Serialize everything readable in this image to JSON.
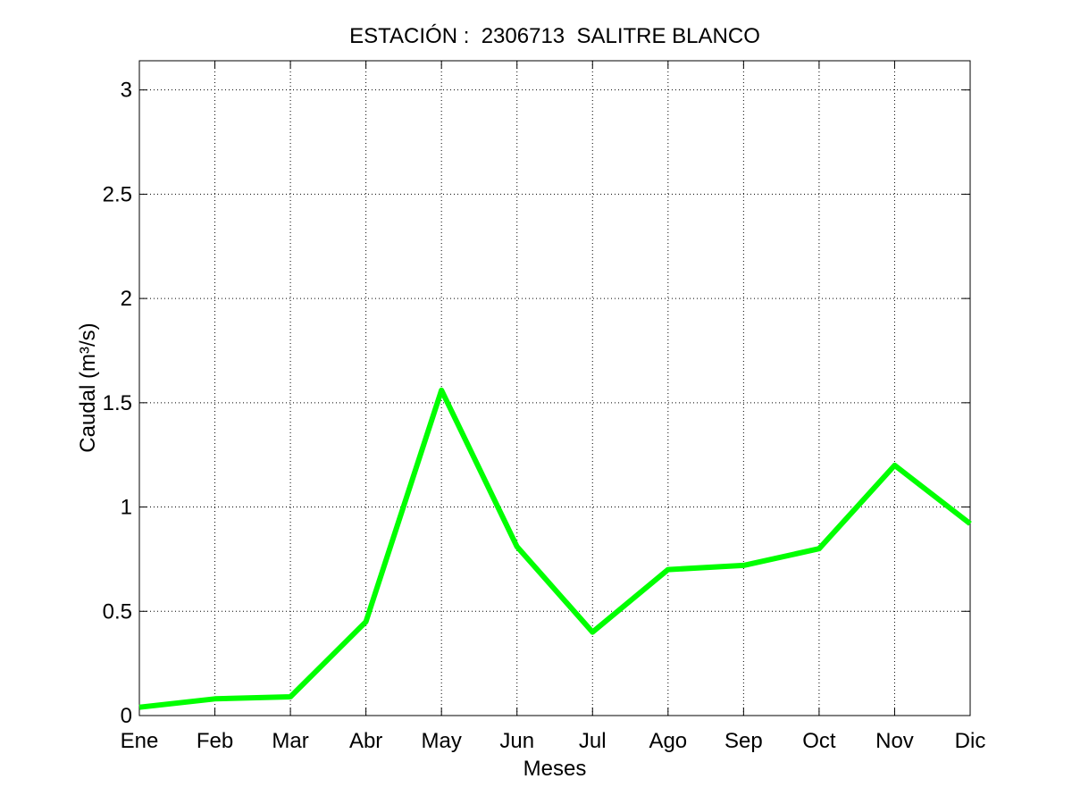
{
  "chart_data": {
    "type": "line",
    "title": "ESTACIÓN :  2306713  SALITRE BLANCO",
    "xlabel": "Meses",
    "ylabel": "Caudal (m³/s)",
    "categories": [
      "Ene",
      "Feb",
      "Mar",
      "Abr",
      "May",
      "Jun",
      "Jul",
      "Ago",
      "Sep",
      "Oct",
      "Nov",
      "Dic"
    ],
    "yticks": [
      "0",
      "0.5",
      "1",
      "1.5",
      "2",
      "2.5",
      "3"
    ],
    "ylim": [
      0,
      3.14
    ],
    "grid": true,
    "series": [
      {
        "values": [
          0.04,
          0.08,
          0.09,
          0.45,
          1.56,
          0.81,
          0.4,
          0.7,
          0.72,
          0.8,
          1.2,
          0.92
        ],
        "color": "#00ff00"
      }
    ]
  }
}
